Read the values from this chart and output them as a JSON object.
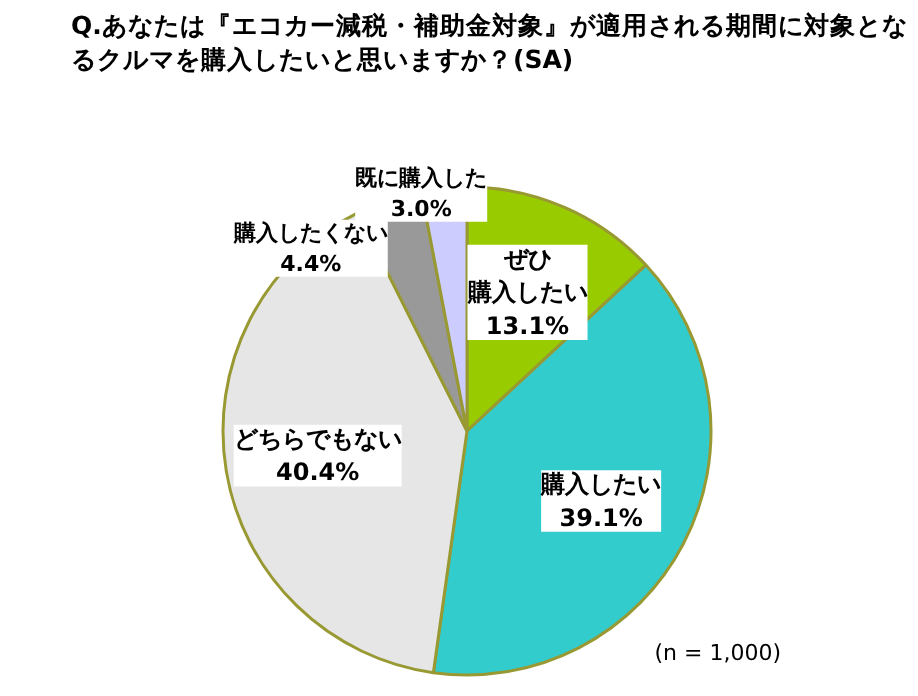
{
  "chart_data": {
    "type": "pie",
    "title": "Q.あなたは『エコカー減税・補助金対象』が適用される期間に対象となるクルマを購入したいと思いますか？(SA)",
    "categories": [
      "ぜひ購入したい",
      "購入したい",
      "どちらでもない",
      "購入したくない",
      "既に購入した"
    ],
    "values": [
      13.1,
      39.1,
      40.4,
      4.4,
      3.0
    ],
    "value_labels": [
      "13.1%",
      "39.1%",
      "40.4%",
      "4.4%",
      "3.0%"
    ],
    "colors": [
      "#99cc00",
      "#33cccc",
      "#e6e6e6",
      "#999999",
      "#ccccff"
    ],
    "annotations": [
      "(n = 1,000)"
    ]
  }
}
